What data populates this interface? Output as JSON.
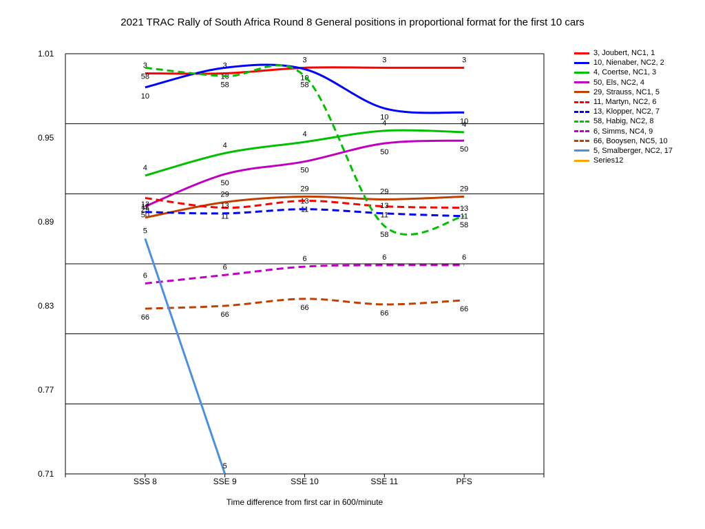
{
  "chart_data": {
    "type": "line",
    "title": "2021 TRAC Rally of South Africa Round 8  General positions in proportional format for the first 10 cars",
    "xlabel": "Time difference from first car in 600/minute",
    "ylabel": "",
    "categories": [
      "SSS 8",
      "SSE 9",
      "SSE 10",
      "SSE 11",
      "PFS"
    ],
    "ylim": [
      0.71,
      1.01
    ],
    "yticks": [
      "0.71",
      "0.77",
      "0.83",
      "0.89",
      "0.95",
      "1.01"
    ],
    "grid": true,
    "legend_position": "right",
    "series": [
      {
        "name": "3, Joubert, NC1, 1",
        "label": "3",
        "color": "#ff0000",
        "dash": false,
        "values": [
          0.996,
          0.996,
          1.0,
          1.0,
          1.0
        ]
      },
      {
        "name": "10, Nienaber, NC2, 2",
        "label": "10",
        "color": "#0000ff",
        "dash": false,
        "values": [
          0.986,
          1.0,
          0.999,
          0.971,
          0.968
        ]
      },
      {
        "name": "4, Coertse, NC1, 3",
        "label": "4",
        "color": "#00c000",
        "dash": false,
        "values": [
          0.923,
          0.939,
          0.947,
          0.955,
          0.954
        ]
      },
      {
        "name": "50, Els, NC2, 4",
        "label": "50",
        "color": "#c000c0",
        "dash": false,
        "values": [
          0.901,
          0.924,
          0.933,
          0.946,
          0.948
        ]
      },
      {
        "name": "29, Strauss, NC1, 5",
        "label": "29",
        "color": "#c04000",
        "dash": false,
        "values": [
          0.893,
          0.904,
          0.908,
          0.906,
          0.908
        ]
      },
      {
        "name": "11, Martyn, NC2, 6",
        "label": "11",
        "color": "#ff0000",
        "dash": true,
        "values": [
          0.907,
          0.9,
          0.905,
          0.901,
          0.9
        ]
      },
      {
        "name": "13, Klopper, NC2, 7",
        "label": "13",
        "color": "#0000ff",
        "dash": true,
        "values": [
          0.897,
          0.896,
          0.899,
          0.896,
          0.894
        ]
      },
      {
        "name": "58, Habig, NC2, 8",
        "label": "58",
        "color": "#00c000",
        "dash": true,
        "values": [
          1.0,
          0.994,
          0.994,
          0.887,
          0.894
        ]
      },
      {
        "name": "6, Simms, NC4, 9",
        "label": "6",
        "color": "#c000c0",
        "dash": true,
        "values": [
          0.846,
          0.852,
          0.858,
          0.859,
          0.859
        ]
      },
      {
        "name": "66, Booysen, NC5, 10",
        "label": "66",
        "color": "#c04000",
        "dash": true,
        "values": [
          0.828,
          0.83,
          0.835,
          0.831,
          0.834
        ]
      },
      {
        "name": "5, Smalberger, NC2, 17",
        "label": "5",
        "color": "#4a90e2",
        "dash": false,
        "values": [
          0.878,
          0.71,
          null,
          null,
          null
        ]
      },
      {
        "name": "Series12",
        "label": "",
        "color": "#ffa500",
        "dash": false,
        "values": [
          null,
          null,
          null,
          null,
          null
        ]
      }
    ]
  }
}
